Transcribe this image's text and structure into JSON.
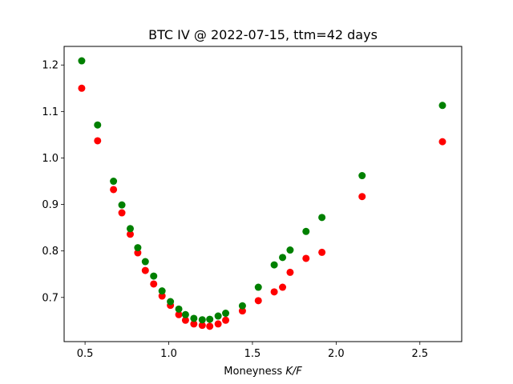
{
  "chart_data": {
    "type": "scatter",
    "title": "BTC IV @ 2022-07-15, ttm=42 days",
    "xlabel_prefix": "Moneyness ",
    "xlabel_var": "K/F",
    "ylabel": "",
    "xlim": [
      0.375,
      2.75
    ],
    "ylim": [
      0.605,
      1.24
    ],
    "xticks": [
      0.5,
      1.0,
      1.5,
      2.0,
      2.5
    ],
    "xtick_labels": [
      "0.5",
      "1.0",
      "1.5",
      "2.0",
      "2.5"
    ],
    "yticks": [
      0.7,
      0.8,
      0.9,
      1.0,
      1.1,
      1.2
    ],
    "ytick_labels": [
      "0.7",
      "0.8",
      "0.9",
      "1.0",
      "1.1",
      "1.2"
    ],
    "grid": false,
    "legend": "none",
    "series": [
      {
        "color": "#ff0000",
        "x": [
          0.48,
          0.575,
          0.67,
          0.72,
          0.77,
          0.815,
          0.86,
          0.91,
          0.96,
          1.01,
          1.06,
          1.1,
          1.15,
          1.2,
          1.245,
          1.295,
          1.34,
          1.44,
          1.535,
          1.63,
          1.68,
          1.725,
          1.82,
          1.915,
          2.155,
          2.635
        ],
        "y": [
          1.15,
          1.037,
          0.932,
          0.882,
          0.836,
          0.796,
          0.758,
          0.729,
          0.703,
          0.683,
          0.663,
          0.651,
          0.643,
          0.64,
          0.638,
          0.643,
          0.651,
          0.671,
          0.693,
          0.712,
          0.722,
          0.754,
          0.784,
          0.797,
          0.917,
          1.035
        ]
      },
      {
        "color": "#008000",
        "x": [
          0.48,
          0.575,
          0.67,
          0.72,
          0.77,
          0.815,
          0.86,
          0.91,
          0.96,
          1.01,
          1.06,
          1.1,
          1.15,
          1.2,
          1.245,
          1.295,
          1.34,
          1.44,
          1.535,
          1.63,
          1.68,
          1.725,
          1.82,
          1.915,
          2.155,
          2.635
        ],
        "y": [
          1.209,
          1.071,
          0.95,
          0.899,
          0.848,
          0.807,
          0.777,
          0.746,
          0.714,
          0.691,
          0.675,
          0.663,
          0.655,
          0.652,
          0.653,
          0.66,
          0.666,
          0.682,
          0.722,
          0.77,
          0.786,
          0.802,
          0.842,
          0.872,
          0.962,
          1.113
        ]
      }
    ]
  }
}
